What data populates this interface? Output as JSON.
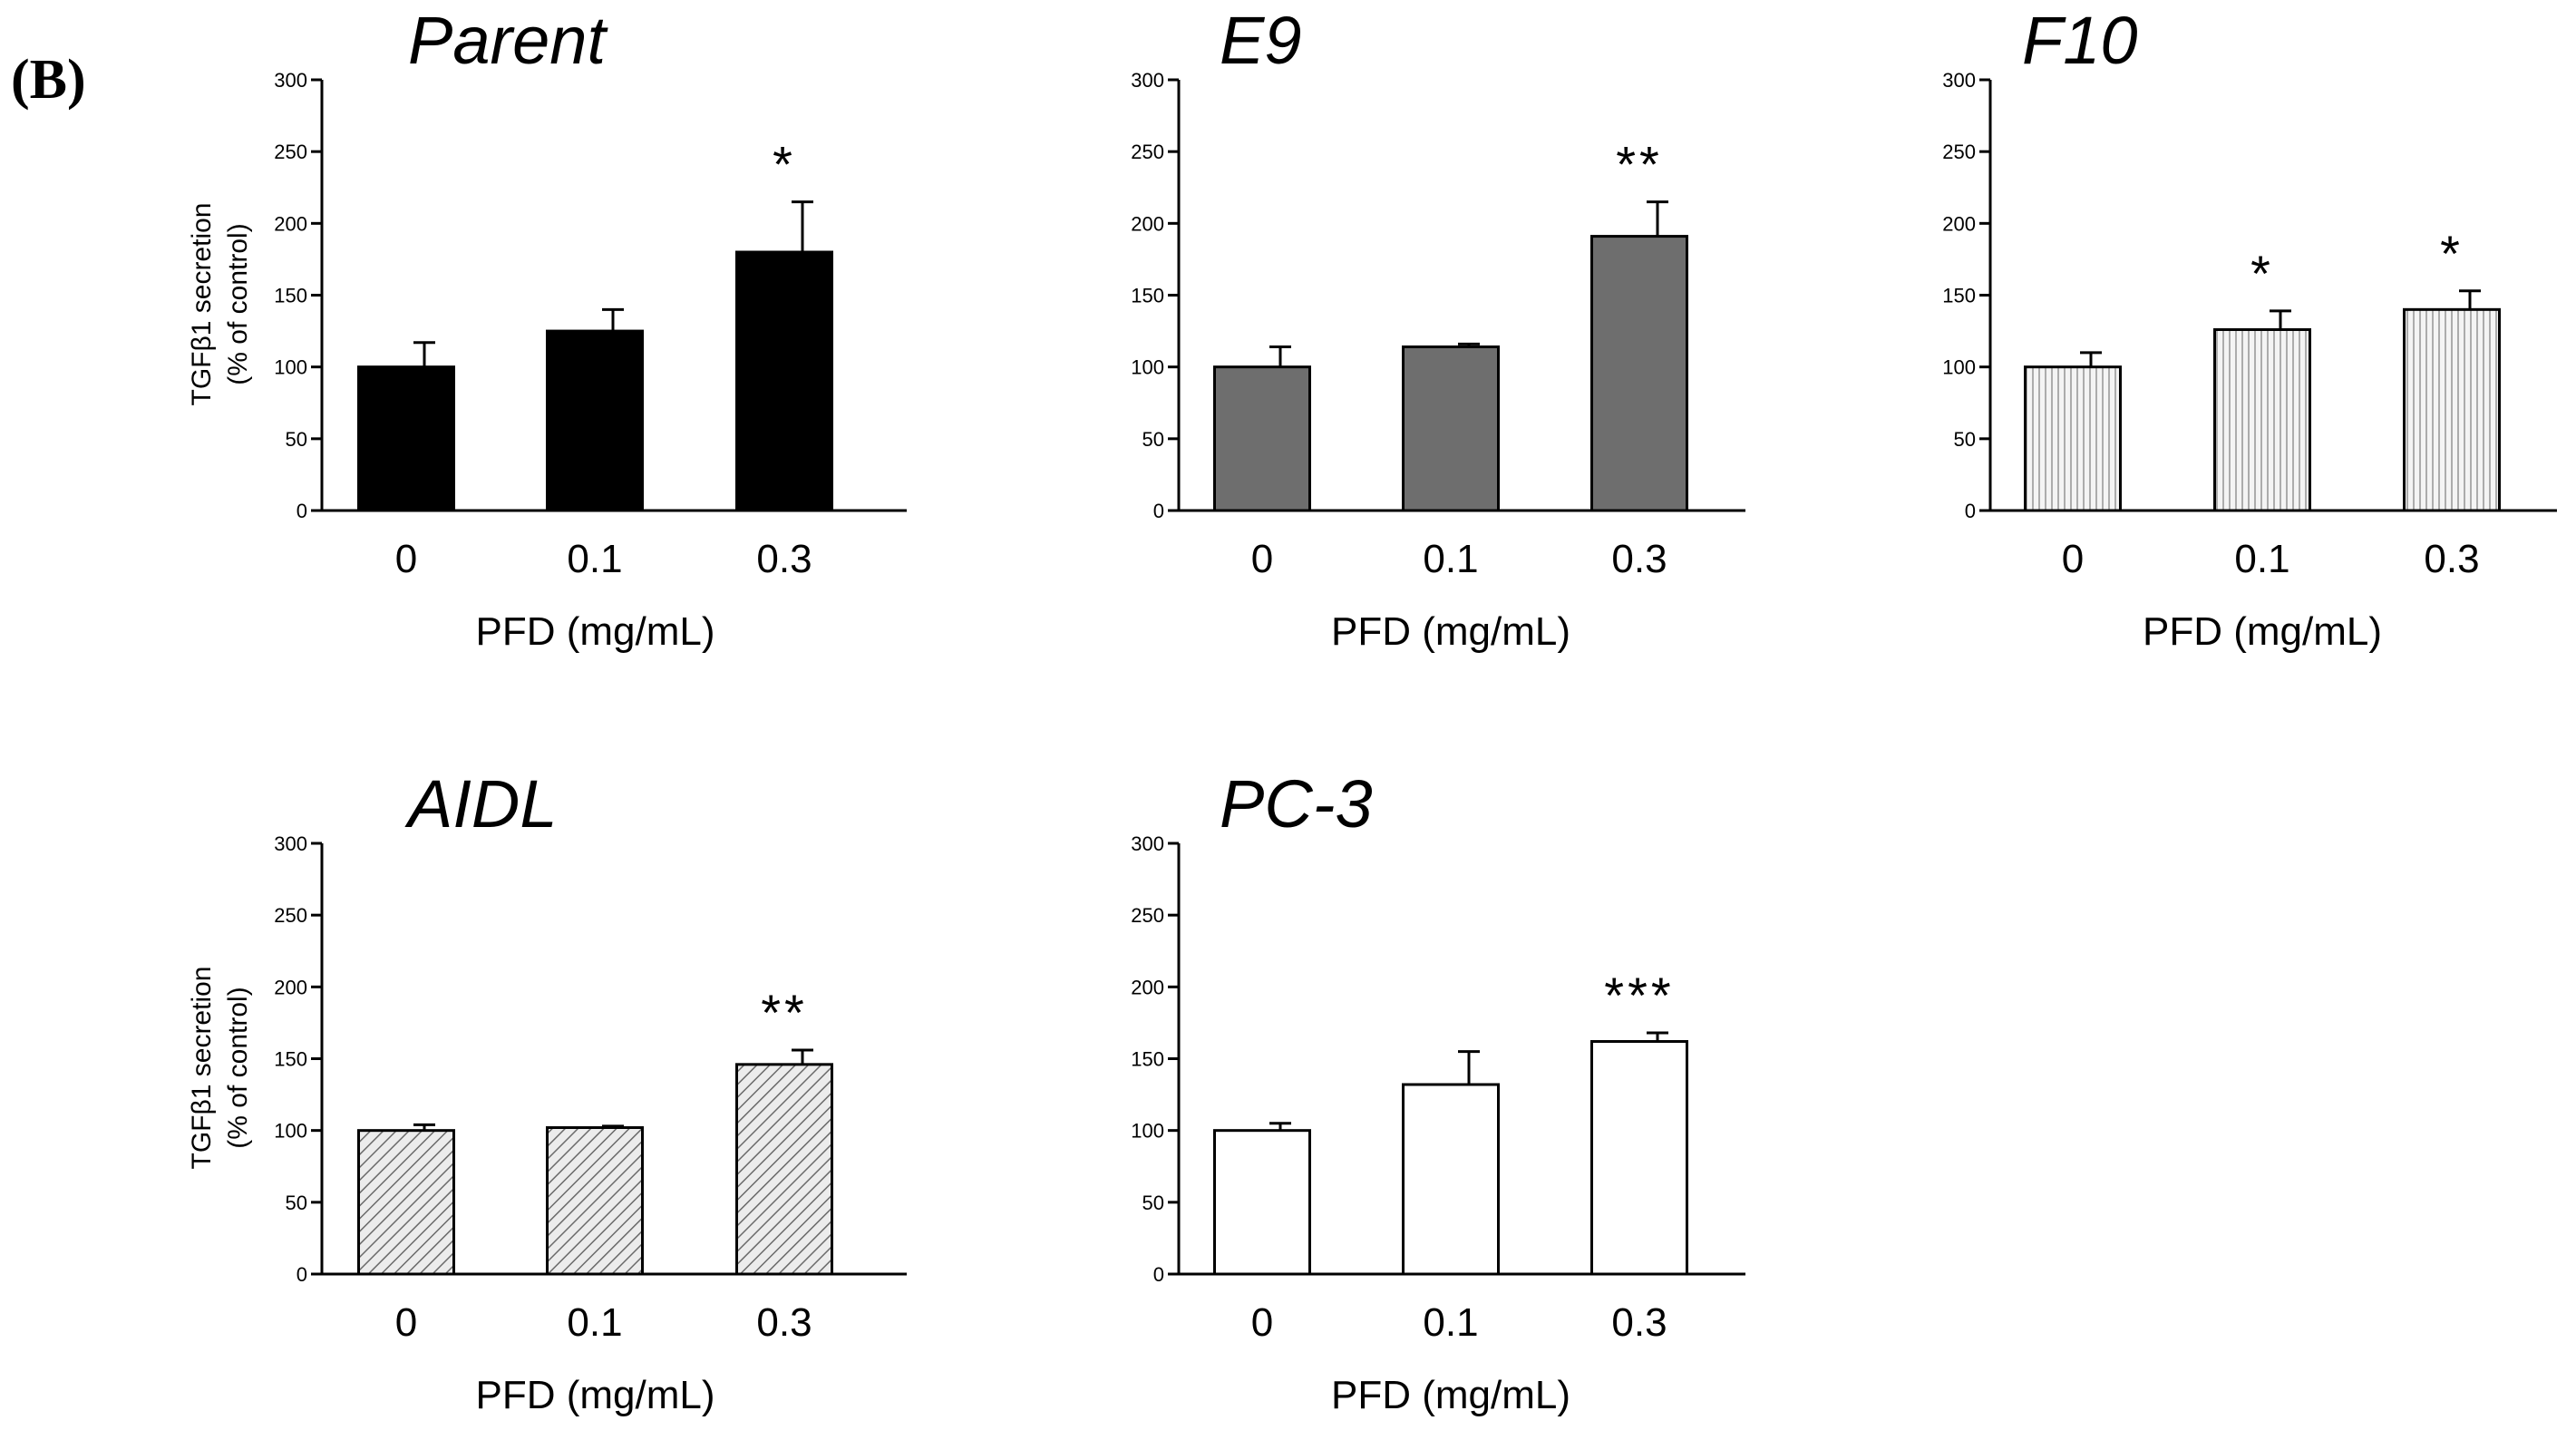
{
  "figure": {
    "panel_label": "(B)",
    "colors": {
      "axis": "#000000",
      "Parent": "#000000",
      "E9": "#6e6e6e",
      "F10": "#f4f4f4",
      "AIDL": "#e8e8e8",
      "PC-3": "#ffffff"
    }
  },
  "chart_data": [
    {
      "type": "bar",
      "title": "Parent",
      "fill": "solid-black",
      "categories": [
        "0",
        "0.1",
        "0.3"
      ],
      "values": [
        100,
        125,
        180
      ],
      "errors": [
        17,
        15,
        35
      ],
      "significance": [
        "",
        "",
        "*"
      ],
      "xlabel": "PFD (mg/mL)",
      "ylabel_line1": "TGFβ1 secretion",
      "ylabel_line2": "(% of control)",
      "ylim": [
        0,
        300
      ],
      "yticks": [
        "0",
        "50",
        "100",
        "150",
        "200",
        "250",
        "300"
      ]
    },
    {
      "type": "bar",
      "title": "E9",
      "fill": "solid-gray",
      "categories": [
        "0",
        "0.1",
        "0.3"
      ],
      "values": [
        100,
        114,
        191
      ],
      "errors": [
        14,
        2,
        24
      ],
      "significance": [
        "",
        "",
        "**"
      ],
      "xlabel": "PFD (mg/mL)",
      "ylabel_line1": "",
      "ylabel_line2": "",
      "ylim": [
        0,
        300
      ],
      "yticks": [
        "0",
        "50",
        "100",
        "150",
        "200",
        "250",
        "300"
      ]
    },
    {
      "type": "bar",
      "title": "F10",
      "fill": "vertical-stripes",
      "categories": [
        "0",
        "0.1",
        "0.3"
      ],
      "values": [
        100,
        126,
        140
      ],
      "errors": [
        10,
        13,
        13
      ],
      "significance": [
        "",
        "*",
        "*"
      ],
      "xlabel": "PFD (mg/mL)",
      "ylabel_line1": "",
      "ylabel_line2": "",
      "ylim": [
        0,
        300
      ],
      "yticks": [
        "0",
        "50",
        "100",
        "150",
        "200",
        "250",
        "300"
      ]
    },
    {
      "type": "bar",
      "title": "AIDL",
      "fill": "diagonal-hatch",
      "categories": [
        "0",
        "0.1",
        "0.3"
      ],
      "values": [
        100,
        102,
        146
      ],
      "errors": [
        4,
        1,
        10
      ],
      "significance": [
        "",
        "",
        "**"
      ],
      "xlabel": "PFD (mg/mL)",
      "ylabel_line1": "TGFβ1 secretion",
      "ylabel_line2": "(% of control)",
      "ylim": [
        0,
        300
      ],
      "yticks": [
        "0",
        "50",
        "100",
        "150",
        "200",
        "250",
        "300"
      ]
    },
    {
      "type": "bar",
      "title": "PC-3",
      "fill": "white",
      "categories": [
        "0",
        "0.1",
        "0.3"
      ],
      "values": [
        100,
        132,
        162
      ],
      "errors": [
        5,
        23,
        6
      ],
      "significance": [
        "",
        "",
        "***"
      ],
      "xlabel": "PFD (mg/mL)",
      "ylabel_line1": "",
      "ylabel_line2": "",
      "ylim": [
        0,
        300
      ],
      "yticks": [
        "0",
        "50",
        "100",
        "150",
        "200",
        "250",
        "300"
      ]
    }
  ]
}
